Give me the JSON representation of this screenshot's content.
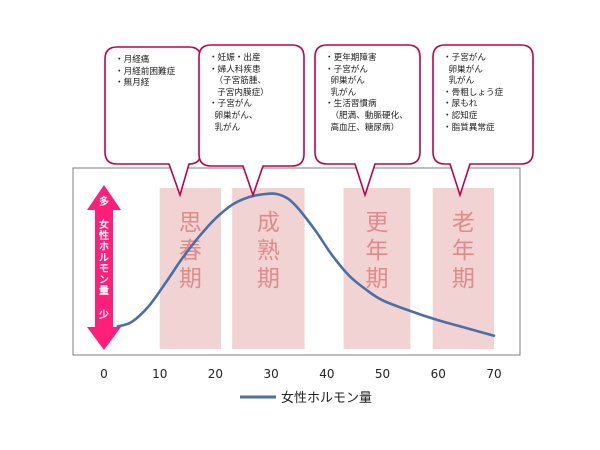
{
  "chart_data": {
    "type": "line",
    "x_ticks": [
      "0",
      "10",
      "20",
      "30",
      "40",
      "50",
      "60",
      "70"
    ],
    "xlim": [
      0,
      70
    ],
    "ylim": [
      0,
      1
    ],
    "series": [
      {
        "name": "女性ホルモン量",
        "color": "#4a6fa5",
        "x": [
          2.5,
          5,
          8,
          11,
          14,
          17,
          20,
          23,
          26,
          29,
          31,
          33,
          35,
          38,
          41,
          44,
          47,
          50,
          55,
          60,
          65,
          70
        ],
        "y": [
          0.14,
          0.17,
          0.27,
          0.42,
          0.58,
          0.72,
          0.84,
          0.93,
          0.98,
          1.0,
          1.0,
          0.97,
          0.9,
          0.76,
          0.6,
          0.47,
          0.38,
          0.31,
          0.24,
          0.18,
          0.13,
          0.08
        ]
      }
    ],
    "bands": [
      {
        "label": "思春期",
        "x_start": 10,
        "x_end": 21
      },
      {
        "label": "成熟期",
        "x_start": 23,
        "x_end": 36
      },
      {
        "label": "更年期",
        "x_start": 43,
        "x_end": 55
      },
      {
        "label": "老年期",
        "x_start": 59,
        "x_end": 70
      }
    ],
    "band_color": "#f2d3d3",
    "band_label_color": "#e08a8a",
    "y_axis_indicator": {
      "top": "多",
      "label": "女性ホルモン量",
      "bottom": "少",
      "color": "#ff1f7a"
    },
    "legend": {
      "label": "女性ホルモン量",
      "position": "bottom-center"
    },
    "grid": false
  },
  "callouts": [
    {
      "lines": [
        "・月経痛",
        "・月経前困難症",
        "・無月経"
      ]
    },
    {
      "lines": [
        "・妊娠・出産",
        "・婦人科疾患",
        "  （子宮筋腫、",
        "   子宮内膜症）",
        "・子宮がん",
        "  卵巣がん、",
        "  乳がん"
      ]
    },
    {
      "lines": [
        "・更年期障害",
        "・子宮がん",
        "  卵巣がん",
        "  乳がん",
        "・生活習慣病",
        "  （肥満、動脈硬化、",
        "  高血圧、糖尿病）"
      ]
    },
    {
      "lines": [
        "・子宮がん",
        "  卵巣がん",
        "  乳がん",
        "・骨粗しょう症",
        "・尿もれ",
        "・認知症",
        "・脂質異常症"
      ]
    }
  ],
  "callout_border_color": "#c0004d"
}
